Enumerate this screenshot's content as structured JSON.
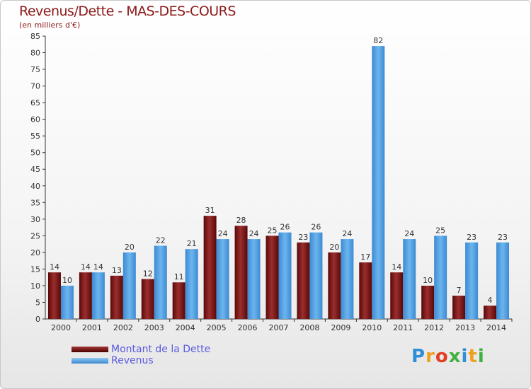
{
  "header": {
    "title": "Revenus/Dette - MAS-DES-COURS",
    "subtitle": "(en milliers d'€)"
  },
  "legend": {
    "debt_label": "Montant de la Dette",
    "revenue_label": "Revenus"
  },
  "logo": {
    "text": "Proxiti"
  },
  "colors": {
    "title": "#8c1a1a",
    "debt_dark": "#4a0000",
    "debt_light": "#a83838",
    "revenue_dark": "#3a88d0",
    "revenue_light": "#8fc7f0",
    "legend_text": "#5a5ae0"
  },
  "chart_data": {
    "type": "bar",
    "title": "Revenus/Dette - MAS-DES-COURS",
    "ylabel": "(en milliers d'€)",
    "xlabel": "",
    "ylim": [
      0,
      85
    ],
    "yticks": [
      0,
      5,
      10,
      15,
      20,
      25,
      30,
      35,
      40,
      45,
      50,
      55,
      60,
      65,
      70,
      75,
      80,
      85
    ],
    "categories": [
      "2000",
      "2001",
      "2002",
      "2003",
      "2004",
      "2005",
      "2006",
      "2007",
      "2008",
      "2009",
      "2010",
      "2011",
      "2012",
      "2013",
      "2014"
    ],
    "series": [
      {
        "name": "Montant de la Dette",
        "values": [
          14,
          14,
          13,
          12,
          11,
          31,
          28,
          25,
          23,
          20,
          17,
          14,
          10,
          7,
          4
        ]
      },
      {
        "name": "Revenus",
        "values": [
          10,
          14,
          20,
          22,
          21,
          24,
          24,
          26,
          26,
          24,
          82,
          24,
          25,
          23,
          23
        ]
      }
    ],
    "grid": false,
    "legend_position": "bottom-left"
  }
}
